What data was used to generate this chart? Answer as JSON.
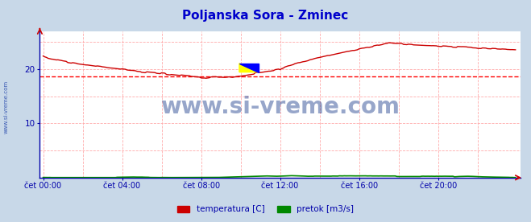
{
  "title": "Poljanska Sora - Zminec",
  "title_color": "#0000cc",
  "title_fontsize": 11,
  "bg_color": "#c8d8e8",
  "plot_bg_color": "#ffffff",
  "watermark": "www.si-vreme.com",
  "watermark_color": "#1a3a8a",
  "tick_color": "#0000aa",
  "grid_color": "#ffaaaa",
  "avg_line_color": "#ff0000",
  "avg_line_value": 18.7,
  "x_ticks_labels": [
    "čet 00:00",
    "čet 04:00",
    "čet 08:00",
    "čet 12:00",
    "čet 16:00",
    "čet 20:00"
  ],
  "x_ticks_pos": [
    0,
    48,
    96,
    144,
    192,
    240
  ],
  "y_ticks": [
    10,
    20
  ],
  "ylim": [
    0,
    27
  ],
  "xlim": [
    -2,
    290
  ],
  "temp_color": "#cc0000",
  "flow_color": "#008800",
  "legend_labels": [
    "temperatura [C]",
    "pretok [m3/s]"
  ],
  "legend_colors": [
    "#cc0000",
    "#008800"
  ],
  "n_points": 288,
  "spine_color": "#0000aa",
  "side_label": "www.si-vreme.com"
}
